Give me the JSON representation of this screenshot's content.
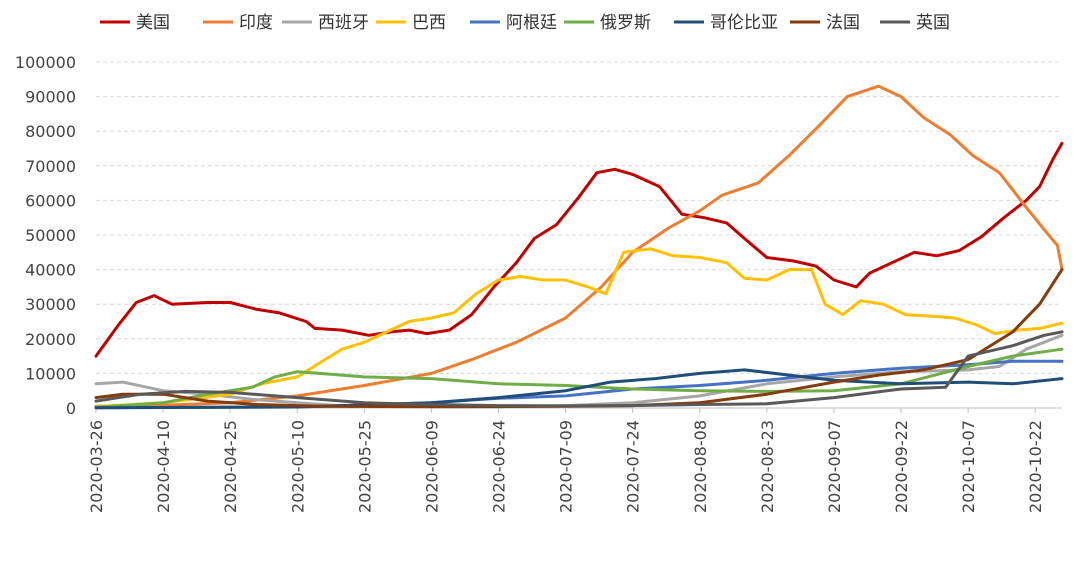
{
  "chart_data": {
    "type": "line",
    "title": "",
    "xlabel": "",
    "ylabel": "",
    "ylim": [
      0,
      100000
    ],
    "yticks": [
      0,
      10000,
      20000,
      30000,
      40000,
      50000,
      60000,
      70000,
      80000,
      90000,
      100000
    ],
    "ytick_labels": [
      "0",
      "10000",
      "20000",
      "30000",
      "40000",
      "50000",
      "60000",
      "70000",
      "80000",
      "90000",
      "100000"
    ],
    "xlim": [
      "2020-03-26",
      "2020-10-28"
    ],
    "xtick_labels": [
      "2020-03-26",
      "2020-04-10",
      "2020-04-25",
      "2020-05-10",
      "2020-05-25",
      "2020-06-09",
      "2020-06-24",
      "2020-07-09",
      "2020-07-24",
      "2020-08-08",
      "2020-08-23",
      "2020-09-07",
      "2020-09-22",
      "2020-10-07",
      "2020-10-22"
    ],
    "grid": "horizontal-dashed",
    "legend": "top",
    "series": [
      {
        "name": "美国",
        "color": "#c00000",
        "points": [
          [
            "2020-03-26",
            15000
          ],
          [
            "2020-03-31",
            24000
          ],
          [
            "2020-04-04",
            30500
          ],
          [
            "2020-04-08",
            32500
          ],
          [
            "2020-04-12",
            30000
          ],
          [
            "2020-04-20",
            30500
          ],
          [
            "2020-04-25",
            30500
          ],
          [
            "2020-05-01",
            28500
          ],
          [
            "2020-05-06",
            27500
          ],
          [
            "2020-05-12",
            25000
          ],
          [
            "2020-05-14",
            23000
          ],
          [
            "2020-05-20",
            22500
          ],
          [
            "2020-05-26",
            21000
          ],
          [
            "2020-05-31",
            22000
          ],
          [
            "2020-06-04",
            22500
          ],
          [
            "2020-06-08",
            21500
          ],
          [
            "2020-06-13",
            22500
          ],
          [
            "2020-06-18",
            27000
          ],
          [
            "2020-06-23",
            35000
          ],
          [
            "2020-06-28",
            42000
          ],
          [
            "2020-07-02",
            49000
          ],
          [
            "2020-07-07",
            53000
          ],
          [
            "2020-07-12",
            61000
          ],
          [
            "2020-07-16",
            68000
          ],
          [
            "2020-07-20",
            69000
          ],
          [
            "2020-07-24",
            67500
          ],
          [
            "2020-07-30",
            64000
          ],
          [
            "2020-08-04",
            56000
          ],
          [
            "2020-08-09",
            55000
          ],
          [
            "2020-08-14",
            53500
          ],
          [
            "2020-08-18",
            49000
          ],
          [
            "2020-08-23",
            43500
          ],
          [
            "2020-08-29",
            42500
          ],
          [
            "2020-09-03",
            41000
          ],
          [
            "2020-09-07",
            37000
          ],
          [
            "2020-09-12",
            35000
          ],
          [
            "2020-09-15",
            39000
          ],
          [
            "2020-09-20",
            42000
          ],
          [
            "2020-09-25",
            45000
          ],
          [
            "2020-09-30",
            44000
          ],
          [
            "2020-10-05",
            45500
          ],
          [
            "2020-10-10",
            49500
          ],
          [
            "2020-10-15",
            55000
          ],
          [
            "2020-10-20",
            60000
          ],
          [
            "2020-10-23",
            64000
          ],
          [
            "2020-10-26",
            72000
          ],
          [
            "2020-10-28",
            76500
          ]
        ]
      },
      {
        "name": "印度",
        "color": "#ed7d31",
        "points": [
          [
            "2020-03-26",
            500
          ],
          [
            "2020-04-10",
            800
          ],
          [
            "2020-04-25",
            1500
          ],
          [
            "2020-05-10",
            3500
          ],
          [
            "2020-05-25",
            6500
          ],
          [
            "2020-06-09",
            10000
          ],
          [
            "2020-06-18",
            14000
          ],
          [
            "2020-06-28",
            19000
          ],
          [
            "2020-07-09",
            26000
          ],
          [
            "2020-07-17",
            35000
          ],
          [
            "2020-07-24",
            45000
          ],
          [
            "2020-08-01",
            52000
          ],
          [
            "2020-08-08",
            57000
          ],
          [
            "2020-08-13",
            61500
          ],
          [
            "2020-08-21",
            65000
          ],
          [
            "2020-08-28",
            73000
          ],
          [
            "2020-09-04",
            82000
          ],
          [
            "2020-09-10",
            90000
          ],
          [
            "2020-09-17",
            93000
          ],
          [
            "2020-09-22",
            90000
          ],
          [
            "2020-09-27",
            84000
          ],
          [
            "2020-10-03",
            79000
          ],
          [
            "2020-10-08",
            73000
          ],
          [
            "2020-10-14",
            68000
          ],
          [
            "2020-10-20",
            58000
          ],
          [
            "2020-10-25",
            50000
          ],
          [
            "2020-10-27",
            47000
          ],
          [
            "2020-10-28",
            40000
          ]
        ]
      },
      {
        "name": "西班牙",
        "color": "#a6a6a6",
        "points": [
          [
            "2020-03-26",
            7000
          ],
          [
            "2020-04-01",
            7500
          ],
          [
            "2020-04-10",
            5000
          ],
          [
            "2020-04-20",
            4000
          ],
          [
            "2020-04-30",
            2500
          ],
          [
            "2020-05-10",
            1500
          ],
          [
            "2020-05-20",
            600
          ],
          [
            "2020-06-09",
            300
          ],
          [
            "2020-06-24",
            400
          ],
          [
            "2020-07-09",
            700
          ],
          [
            "2020-07-24",
            1500
          ],
          [
            "2020-08-08",
            3500
          ],
          [
            "2020-08-23",
            7000
          ],
          [
            "2020-09-07",
            9000
          ],
          [
            "2020-09-22",
            10500
          ],
          [
            "2020-10-07",
            11000
          ],
          [
            "2020-10-14",
            12000
          ],
          [
            "2020-10-20",
            17000
          ],
          [
            "2020-10-28",
            21000
          ]
        ]
      },
      {
        "name": "巴西",
        "color": "#ffc000",
        "points": [
          [
            "2020-03-26",
            400
          ],
          [
            "2020-04-10",
            1500
          ],
          [
            "2020-04-25",
            4000
          ],
          [
            "2020-05-02",
            7000
          ],
          [
            "2020-05-10",
            9000
          ],
          [
            "2020-05-15",
            13000
          ],
          [
            "2020-05-20",
            17000
          ],
          [
            "2020-05-25",
            19000
          ],
          [
            "2020-05-30",
            22000
          ],
          [
            "2020-06-04",
            25000
          ],
          [
            "2020-06-09",
            26000
          ],
          [
            "2020-06-14",
            27500
          ],
          [
            "2020-06-19",
            33000
          ],
          [
            "2020-06-24",
            37000
          ],
          [
            "2020-06-29",
            38000
          ],
          [
            "2020-07-04",
            37000
          ],
          [
            "2020-07-09",
            37000
          ],
          [
            "2020-07-14",
            35000
          ],
          [
            "2020-07-18",
            33000
          ],
          [
            "2020-07-22",
            45000
          ],
          [
            "2020-07-28",
            46000
          ],
          [
            "2020-08-02",
            44000
          ],
          [
            "2020-08-08",
            43500
          ],
          [
            "2020-08-14",
            42000
          ],
          [
            "2020-08-18",
            37500
          ],
          [
            "2020-08-23",
            37000
          ],
          [
            "2020-08-28",
            40000
          ],
          [
            "2020-09-02",
            40000
          ],
          [
            "2020-09-05",
            30000
          ],
          [
            "2020-09-09",
            27000
          ],
          [
            "2020-09-13",
            31000
          ],
          [
            "2020-09-18",
            30000
          ],
          [
            "2020-09-23",
            27000
          ],
          [
            "2020-09-29",
            26500
          ],
          [
            "2020-10-04",
            26000
          ],
          [
            "2020-10-09",
            24000
          ],
          [
            "2020-10-13",
            21500
          ],
          [
            "2020-10-18",
            22500
          ],
          [
            "2020-10-23",
            23000
          ],
          [
            "2020-10-28",
            24500
          ]
        ]
      },
      {
        "name": "阿根廷",
        "color": "#4472c4",
        "points": [
          [
            "2020-03-26",
            50
          ],
          [
            "2020-05-10",
            300
          ],
          [
            "2020-06-09",
            1500
          ],
          [
            "2020-06-24",
            2800
          ],
          [
            "2020-07-09",
            3500
          ],
          [
            "2020-07-24",
            5500
          ],
          [
            "2020-08-08",
            6500
          ],
          [
            "2020-08-23",
            8000
          ],
          [
            "2020-09-07",
            10000
          ],
          [
            "2020-09-22",
            11500
          ],
          [
            "2020-10-07",
            12500
          ],
          [
            "2020-10-17",
            13500
          ],
          [
            "2020-10-28",
            13500
          ]
        ]
      },
      {
        "name": "俄罗斯",
        "color": "#70ad47",
        "points": [
          [
            "2020-03-26",
            200
          ],
          [
            "2020-04-10",
            1500
          ],
          [
            "2020-04-20",
            4000
          ],
          [
            "2020-04-30",
            6000
          ],
          [
            "2020-05-05",
            9000
          ],
          [
            "2020-05-10",
            10500
          ],
          [
            "2020-05-15",
            10000
          ],
          [
            "2020-05-25",
            9000
          ],
          [
            "2020-06-09",
            8500
          ],
          [
            "2020-06-24",
            7000
          ],
          [
            "2020-07-09",
            6500
          ],
          [
            "2020-07-24",
            5500
          ],
          [
            "2020-08-08",
            5000
          ],
          [
            "2020-08-23",
            4800
          ],
          [
            "2020-09-07",
            5000
          ],
          [
            "2020-09-22",
            7000
          ],
          [
            "2020-10-07",
            12000
          ],
          [
            "2020-10-17",
            15000
          ],
          [
            "2020-10-28",
            17000
          ]
        ]
      },
      {
        "name": "哥伦比亚",
        "color": "#1f4e79",
        "points": [
          [
            "2020-03-26",
            50
          ],
          [
            "2020-05-10",
            300
          ],
          [
            "2020-06-09",
            1500
          ],
          [
            "2020-06-24",
            3000
          ],
          [
            "2020-07-09",
            5000
          ],
          [
            "2020-07-19",
            7500
          ],
          [
            "2020-07-29",
            8500
          ],
          [
            "2020-08-08",
            10000
          ],
          [
            "2020-08-18",
            11000
          ],
          [
            "2020-08-28",
            9500
          ],
          [
            "2020-09-07",
            8000
          ],
          [
            "2020-09-22",
            7000
          ],
          [
            "2020-10-07",
            7500
          ],
          [
            "2020-10-17",
            7000
          ],
          [
            "2020-10-28",
            8500
          ]
        ]
      },
      {
        "name": "法国",
        "color": "#843c0c",
        "points": [
          [
            "2020-03-26",
            3000
          ],
          [
            "2020-04-01",
            4000
          ],
          [
            "2020-04-10",
            4000
          ],
          [
            "2020-04-20",
            2000
          ],
          [
            "2020-05-01",
            1000
          ],
          [
            "2020-05-15",
            500
          ],
          [
            "2020-06-09",
            400
          ],
          [
            "2020-06-24",
            400
          ],
          [
            "2020-07-09",
            500
          ],
          [
            "2020-07-24",
            700
          ],
          [
            "2020-08-08",
            1500
          ],
          [
            "2020-08-23",
            4000
          ],
          [
            "2020-09-07",
            7500
          ],
          [
            "2020-09-17",
            9500
          ],
          [
            "2020-09-27",
            11000
          ],
          [
            "2020-10-07",
            14000
          ],
          [
            "2020-10-17",
            22000
          ],
          [
            "2020-10-23",
            30000
          ],
          [
            "2020-10-28",
            40000
          ]
        ]
      },
      {
        "name": "英国",
        "color": "#595959",
        "points": [
          [
            "2020-03-26",
            2000
          ],
          [
            "2020-04-05",
            4000
          ],
          [
            "2020-04-15",
            4800
          ],
          [
            "2020-04-25",
            4500
          ],
          [
            "2020-05-10",
            3000
          ],
          [
            "2020-05-25",
            1500
          ],
          [
            "2020-06-09",
            1000
          ],
          [
            "2020-06-24",
            700
          ],
          [
            "2020-07-09",
            600
          ],
          [
            "2020-07-24",
            700
          ],
          [
            "2020-08-08",
            1000
          ],
          [
            "2020-08-23",
            1200
          ],
          [
            "2020-09-07",
            3000
          ],
          [
            "2020-09-22",
            5500
          ],
          [
            "2020-10-02",
            6000
          ],
          [
            "2020-10-07",
            15000
          ],
          [
            "2020-10-17",
            18000
          ],
          [
            "2020-10-24",
            21000
          ],
          [
            "2020-10-28",
            22000
          ]
        ]
      }
    ]
  }
}
